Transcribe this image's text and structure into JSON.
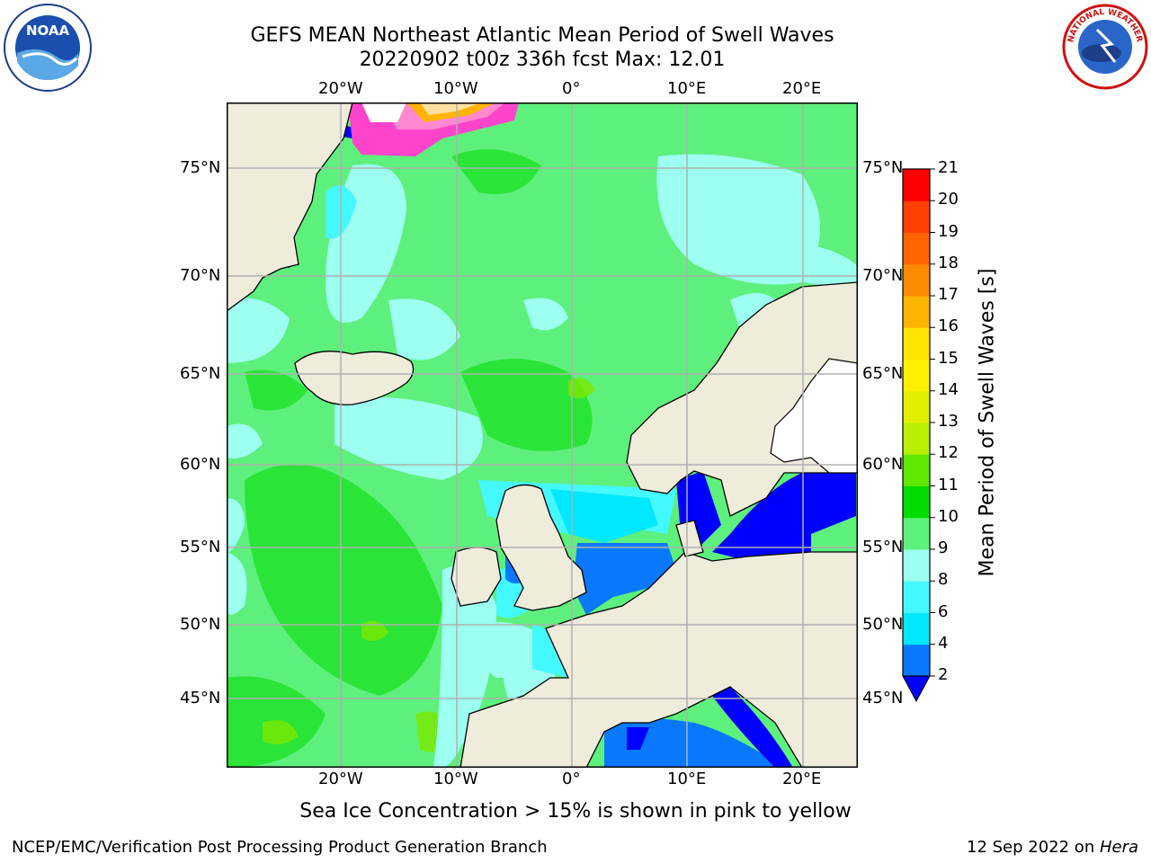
{
  "title": {
    "line1": "GEFS MEAN Northeast Atlantic Mean Period of Swell Waves",
    "line2": "20220902 t00z 336h fcst   Max: 12.01"
  },
  "map": {
    "lon_ticks": [
      "20°W",
      "10°W",
      "0°",
      "10°E",
      "20°E"
    ],
    "lat_ticks": [
      "75°N",
      "70°N",
      "65°N",
      "60°N",
      "55°N",
      "50°N",
      "45°N"
    ],
    "gridlines": true,
    "colors": {
      "land": "#efecdc",
      "ocean_dominant": "#5ef07c",
      "coastline": "#000000",
      "gridline": "#b0b0b0"
    }
  },
  "colorbar": {
    "label": "Mean Period of Swell Waves [s]",
    "ticks": [
      "21",
      "20",
      "19",
      "18",
      "17",
      "16",
      "15",
      "14",
      "13",
      "12",
      "11",
      "10",
      "9",
      "8",
      "6",
      "4",
      "2"
    ],
    "bins_bottom_to_top": [
      {
        "from": 2,
        "to": 4,
        "color": "#0a78ff"
      },
      {
        "from": 4,
        "to": 6,
        "color": "#00e8ff"
      },
      {
        "from": 6,
        "to": 8,
        "color": "#44f8ff"
      },
      {
        "from": 8,
        "to": 9,
        "color": "#9cfff0"
      },
      {
        "from": 9,
        "to": 10,
        "color": "#5ef07c"
      },
      {
        "from": 10,
        "to": 11,
        "color": "#00dc00"
      },
      {
        "from": 11,
        "to": 12,
        "color": "#60e800"
      },
      {
        "from": 12,
        "to": 13,
        "color": "#b8f000"
      },
      {
        "from": 13,
        "to": 14,
        "color": "#e0f000"
      },
      {
        "from": 14,
        "to": 15,
        "color": "#fff000"
      },
      {
        "from": 15,
        "to": 16,
        "color": "#ffe400"
      },
      {
        "from": 16,
        "to": 17,
        "color": "#ffb400"
      },
      {
        "from": 17,
        "to": 18,
        "color": "#ff8c00"
      },
      {
        "from": 18,
        "to": 19,
        "color": "#ff6400"
      },
      {
        "from": 19,
        "to": 20,
        "color": "#ff4000"
      },
      {
        "from": 20,
        "to": 21,
        "color": "#ff0000"
      }
    ],
    "under_color": "#0000ff"
  },
  "footnote": "Sea Ice Concentration > 15% is shown in pink to yellow",
  "credit": "NCEP/EMC/Verification Post Processing Product Generation Branch",
  "date_stamp": {
    "date": "12 Sep 2022 on ",
    "machine": "Hera"
  },
  "logos": {
    "left": {
      "text": "NOAA",
      "icon": "noaa-logo-icon"
    },
    "right": {
      "text": "NATIONAL WEATHER SERVICE",
      "icon": "nws-logo-icon"
    }
  }
}
